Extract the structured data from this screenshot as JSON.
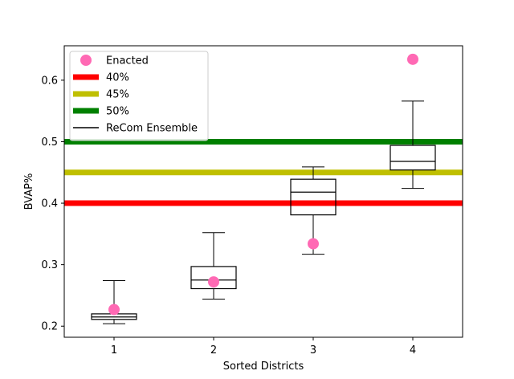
{
  "chart_data": {
    "type": "box",
    "xlabel": "Sorted Districts",
    "ylabel": "BVAP%",
    "xlim": [
      0.5,
      4.5
    ],
    "ylim": [
      0.182,
      0.656
    ],
    "x_ticks": [
      1,
      2,
      3,
      4
    ],
    "y_ticks": [
      0.2,
      0.3,
      0.4,
      0.5,
      0.6
    ],
    "y_tick_labels": [
      "0.2",
      "0.3",
      "0.4",
      "0.5",
      "0.6"
    ],
    "grid": false,
    "legend_placement": "upper-left",
    "thresholds": [
      {
        "name": "40%",
        "value": 0.4,
        "color": "#ff0000"
      },
      {
        "name": "45%",
        "value": 0.45,
        "color": "#bfbf00"
      },
      {
        "name": "50%",
        "value": 0.5,
        "color": "#008000"
      }
    ],
    "ensemble": {
      "name": "ReCom Ensemble",
      "color": "#000000",
      "boxes": [
        {
          "x": 1,
          "whislo": 0.204,
          "q1": 0.211,
          "med": 0.215,
          "q3": 0.22,
          "whishi": 0.274
        },
        {
          "x": 2,
          "whislo": 0.244,
          "q1": 0.261,
          "med": 0.275,
          "q3": 0.297,
          "whishi": 0.352
        },
        {
          "x": 3,
          "whislo": 0.317,
          "q1": 0.381,
          "med": 0.418,
          "q3": 0.439,
          "whishi": 0.459
        },
        {
          "x": 4,
          "whislo": 0.424,
          "q1": 0.454,
          "med": 0.468,
          "q3": 0.494,
          "whishi": 0.566
        }
      ]
    },
    "enacted": {
      "name": "Enacted",
      "color": "#ff69b4",
      "points": [
        {
          "x": 1,
          "y": 0.227
        },
        {
          "x": 2,
          "y": 0.272
        },
        {
          "x": 3,
          "y": 0.334
        },
        {
          "x": 4,
          "y": 0.634
        }
      ]
    }
  }
}
